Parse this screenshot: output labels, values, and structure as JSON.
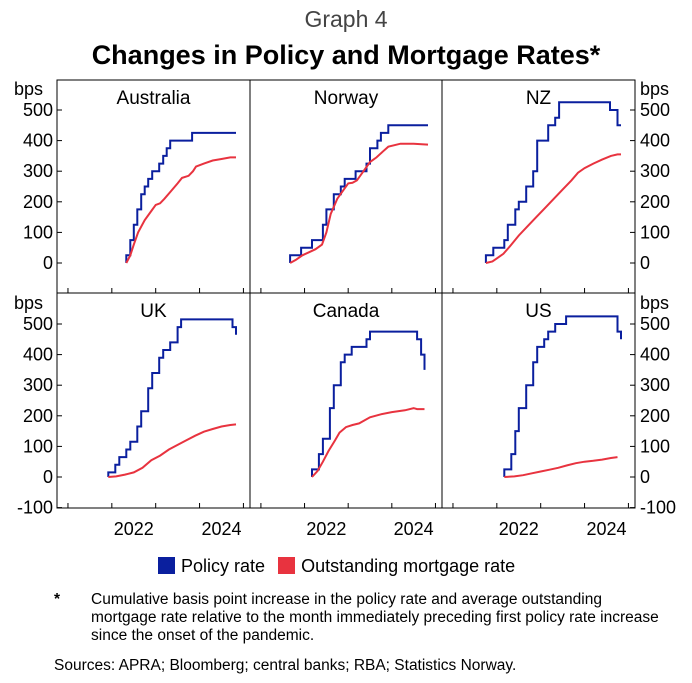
{
  "graph_label": "Graph 4",
  "title": "Changes in Policy and Mortgage Rates*",
  "legend": [
    {
      "label": "Policy rate",
      "color": "#0a1f9e"
    },
    {
      "label": "Outstanding mortgage rate",
      "color": "#e8333f"
    }
  ],
  "footnote_marker": "*",
  "footnote": "Cumulative basis point increase in the policy rate and average outstanding mortgage rate relative to the month immediately preceding first policy rate increase since the onset of the pandemic.",
  "sources": "Sources: APRA; Bloomberg; central banks; RBA; Statistics Norway.",
  "chart_data": {
    "type": "line",
    "unit_label": "bps",
    "x_tick_labels": [
      "2022",
      "2024"
    ],
    "top_row_y_ticks": [
      0,
      100,
      200,
      300,
      400,
      500
    ],
    "bottom_row_y_ticks": [
      -100,
      0,
      100,
      200,
      300,
      400,
      500
    ],
    "top_row_ylim": [
      -100,
      550
    ],
    "bottom_row_ylim": [
      -100,
      550
    ],
    "xlim": [
      2020.75,
      2025.15
    ],
    "panels": [
      {
        "title": "Australia",
        "series": [
          {
            "name": "Policy rate",
            "step": true,
            "x": [
              2022.33,
              2022.42,
              2022.5,
              2022.58,
              2022.67,
              2022.75,
              2022.83,
              2022.92,
              2023.08,
              2023.17,
              2023.25,
              2023.33,
              2023.42,
              2023.83,
              2024.83
            ],
            "y": [
              25,
              75,
              125,
              175,
              225,
              250,
              275,
              300,
              325,
              350,
              375,
              400,
              400,
              425,
              425
            ]
          },
          {
            "name": "Outstanding mortgage rate",
            "x": [
              2022.33,
              2022.42,
              2022.5,
              2022.6,
              2022.75,
              2022.9,
              2023.0,
              2023.1,
              2023.2,
              2023.35,
              2023.5,
              2023.6,
              2023.75,
              2023.85,
              2023.92,
              2024.1,
              2024.3,
              2024.5,
              2024.7,
              2024.83
            ],
            "y": [
              0,
              25,
              60,
              100,
              140,
              170,
              190,
              195,
              210,
              235,
              260,
              278,
              285,
              300,
              315,
              325,
              335,
              340,
              345,
              345
            ]
          }
        ]
      },
      {
        "title": "Norway",
        "series": [
          {
            "name": "Policy rate",
            "step": true,
            "x": [
              2021.67,
              2021.92,
              2022.17,
              2022.42,
              2022.5,
              2022.67,
              2022.83,
              2022.92,
              2023.17,
              2023.42,
              2023.5,
              2023.67,
              2023.75,
              2023.92,
              2024.83
            ],
            "y": [
              25,
              50,
              75,
              125,
              175,
              225,
              250,
              275,
              300,
              325,
              375,
              400,
              425,
              450,
              450
            ]
          },
          {
            "name": "Outstanding mortgage rate",
            "x": [
              2021.67,
              2021.8,
              2021.95,
              2022.1,
              2022.25,
              2022.4,
              2022.5,
              2022.6,
              2022.75,
              2022.9,
              2023.0,
              2023.1,
              2023.2,
              2023.35,
              2023.5,
              2023.65,
              2023.8,
              2023.92,
              2024.2,
              2024.5,
              2024.83
            ],
            "y": [
              0,
              10,
              25,
              35,
              45,
              60,
              100,
              160,
              210,
              240,
              260,
              262,
              270,
              300,
              330,
              345,
              365,
              380,
              390,
              390,
              387
            ]
          }
        ]
      },
      {
        "title": "NZ",
        "series": [
          {
            "name": "Policy rate",
            "step": true,
            "x": [
              2021.75,
              2021.92,
              2022.17,
              2022.25,
              2022.42,
              2022.5,
              2022.67,
              2022.83,
              2022.92,
              2023.17,
              2023.33,
              2023.42,
              2023.5,
              2024.58,
              2024.75,
              2024.83
            ],
            "y": [
              25,
              50,
              75,
              125,
              175,
              200,
              250,
              300,
              400,
              450,
              475,
              525,
              525,
              500,
              450,
              450
            ]
          },
          {
            "name": "Outstanding mortgage rate",
            "x": [
              2021.75,
              2021.9,
              2022.0,
              2022.15,
              2022.3,
              2022.5,
              2022.7,
              2022.9,
              2023.1,
              2023.3,
              2023.5,
              2023.7,
              2023.85,
              2024.0,
              2024.2,
              2024.4,
              2024.6,
              2024.75,
              2024.83
            ],
            "y": [
              0,
              5,
              15,
              30,
              55,
              90,
              120,
              150,
              180,
              210,
              240,
              270,
              295,
              310,
              325,
              338,
              350,
              355,
              355
            ]
          }
        ]
      },
      {
        "title": "UK",
        "series": [
          {
            "name": "Policy rate",
            "step": true,
            "x": [
              2021.92,
              2022.08,
              2022.17,
              2022.33,
              2022.42,
              2022.58,
              2022.67,
              2022.83,
              2022.92,
              2023.08,
              2023.17,
              2023.33,
              2023.5,
              2023.58,
              2024.58,
              2024.75,
              2024.83
            ],
            "y": [
              15,
              40,
              65,
              90,
              115,
              165,
              215,
              290,
              340,
              390,
              415,
              440,
              490,
              515,
              515,
              490,
              465
            ]
          },
          {
            "name": "Outstanding mortgage rate",
            "x": [
              2021.92,
              2022.1,
              2022.3,
              2022.5,
              2022.7,
              2022.9,
              2023.1,
              2023.3,
              2023.5,
              2023.7,
              2023.9,
              2024.1,
              2024.3,
              2024.5,
              2024.7,
              2024.83
            ],
            "y": [
              0,
              2,
              8,
              15,
              30,
              55,
              70,
              90,
              105,
              120,
              135,
              148,
              157,
              165,
              170,
              172
            ]
          }
        ]
      },
      {
        "title": "Canada",
        "series": [
          {
            "name": "Policy rate",
            "step": true,
            "x": [
              2022.17,
              2022.33,
              2022.42,
              2022.58,
              2022.67,
              2022.83,
              2022.92,
              2023.08,
              2023.42,
              2023.5,
              2024.42,
              2024.58,
              2024.67,
              2024.75
            ],
            "y": [
              25,
              75,
              125,
              225,
              300,
              375,
              400,
              425,
              450,
              475,
              475,
              450,
              400,
              350
            ]
          },
          {
            "name": "Outstanding mortgage rate",
            "x": [
              2022.17,
              2022.3,
              2022.42,
              2022.55,
              2022.7,
              2022.8,
              2022.95,
              2023.1,
              2023.25,
              2023.5,
              2023.75,
              2024.0,
              2024.3,
              2024.5,
              2024.58,
              2024.75
            ],
            "y": [
              0,
              20,
              50,
              85,
              120,
              145,
              163,
              170,
              175,
              195,
              205,
              212,
              218,
              225,
              222,
              222
            ]
          }
        ]
      },
      {
        "title": "US",
        "series": [
          {
            "name": "Policy rate",
            "step": true,
            "x": [
              2022.17,
              2022.33,
              2022.42,
              2022.5,
              2022.67,
              2022.83,
              2022.92,
              2023.08,
              2023.17,
              2023.33,
              2023.5,
              2023.58,
              2024.67,
              2024.75,
              2024.83
            ],
            "y": [
              25,
              75,
              150,
              225,
              300,
              375,
              425,
              450,
              475,
              500,
              500,
              525,
              525,
              475,
              450
            ]
          },
          {
            "name": "Outstanding mortgage rate",
            "x": [
              2022.17,
              2022.4,
              2022.6,
              2022.8,
              2023.0,
              2023.2,
              2023.4,
              2023.6,
              2023.8,
              2024.0,
              2024.2,
              2024.4,
              2024.6,
              2024.75
            ],
            "y": [
              0,
              2,
              6,
              12,
              18,
              24,
              30,
              38,
              45,
              50,
              53,
              57,
              62,
              65
            ]
          }
        ]
      }
    ]
  }
}
